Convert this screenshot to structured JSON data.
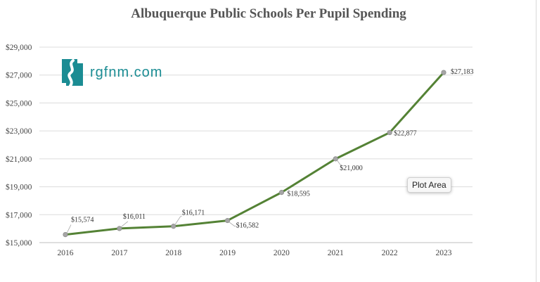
{
  "logo": {
    "text": "rgfnm.com",
    "icon": "new-mexico-logo-icon",
    "color": "#1b8c93"
  },
  "tooltip": {
    "text": "Plot Area"
  },
  "chart_data": {
    "type": "line",
    "title": "Albuquerque Public Schools Per Pupil Spending",
    "xlabel": "",
    "ylabel": "",
    "categories": [
      "2016",
      "2017",
      "2018",
      "2019",
      "2020",
      "2021",
      "2022",
      "2023"
    ],
    "series": [
      {
        "values": [
          15574,
          16011,
          16171,
          16582,
          18595,
          21000,
          22877,
          27183
        ],
        "labels": [
          "$15,574",
          "$16,011",
          "$16,171",
          "$16,582",
          "$18,595",
          "$21,000",
          "$22,877",
          "$27,183"
        ],
        "color": "#548235"
      }
    ],
    "ylim": [
      15000,
      29000
    ],
    "yticks": [
      15000,
      17000,
      19000,
      21000,
      23000,
      25000,
      27000,
      29000
    ],
    "ytick_labels": [
      "$15,000",
      "$17,000",
      "$19,000",
      "$21,000",
      "$23,000",
      "$25,000",
      "$27,000",
      "$29,000"
    ],
    "grid": true,
    "legend": "none"
  }
}
